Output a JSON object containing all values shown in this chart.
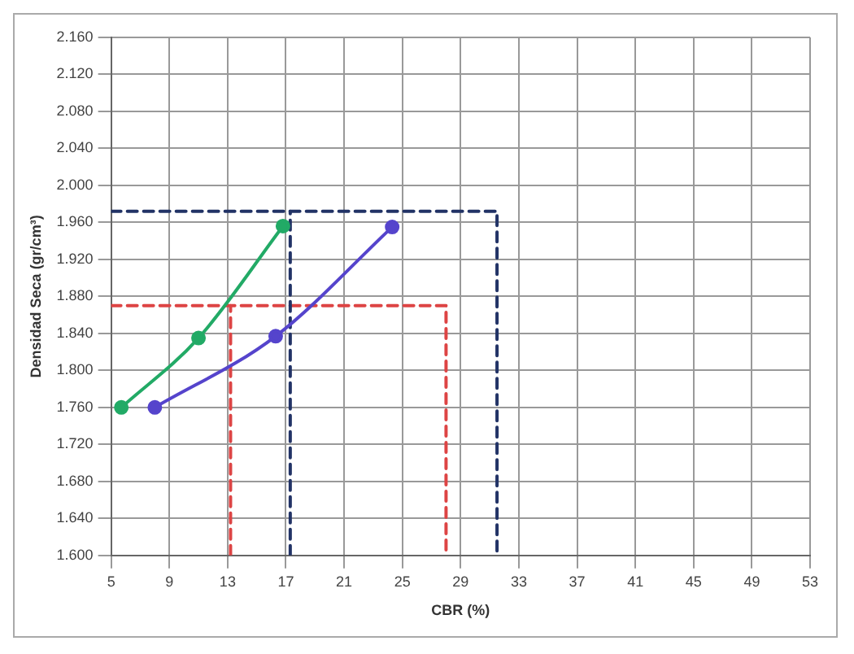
{
  "chart_data": {
    "type": "line",
    "xlabel": "CBR (%)",
    "ylabel": "Densidad Seca (gr/cm³)",
    "xlim": [
      5,
      53
    ],
    "xticks": [
      5,
      9,
      13,
      17,
      21,
      25,
      29,
      33,
      37,
      41,
      45,
      49,
      53
    ],
    "ylim": [
      1.6,
      2.16
    ],
    "yticks": [
      {
        "value": 1.6,
        "label": "1.600"
      },
      {
        "value": 1.64,
        "label": "1.640"
      },
      {
        "value": 1.68,
        "label": "1.680"
      },
      {
        "value": 1.72,
        "label": "1.720"
      },
      {
        "value": 1.76,
        "label": "1.760"
      },
      {
        "value": 1.8,
        "label": "1.800"
      },
      {
        "value": 1.84,
        "label": "1.840"
      },
      {
        "value": 1.88,
        "label": "1.880"
      },
      {
        "value": 1.92,
        "label": "1.920"
      },
      {
        "value": 1.96,
        "label": "1.960"
      },
      {
        "value": 2.0,
        "label": "2.000"
      },
      {
        "value": 2.04,
        "label": "2.040"
      },
      {
        "value": 2.08,
        "label": "2.080"
      },
      {
        "value": 2.12,
        "label": "2.120"
      },
      {
        "value": 2.16,
        "label": "2.160"
      }
    ],
    "grid": true,
    "legend": false,
    "series": [
      {
        "color": "#22aa66",
        "x": [
          5.7,
          11,
          16.8
        ],
        "values": [
          1.76,
          1.835,
          1.956
        ],
        "marker": "circle",
        "line_style": "solid"
      },
      {
        "color": "#5544cc",
        "x": [
          8,
          16.3,
          24.3
        ],
        "values": [
          1.76,
          1.837,
          1.955
        ],
        "marker": "circle",
        "line_style": "solid"
      },
      {
        "color": "#223366",
        "x": [
          5,
          31.5,
          31.5
        ],
        "values": [
          1.972,
          1.972,
          1.6
        ],
        "marker": "none",
        "line_style": "dashed"
      },
      {
        "color": "#223366",
        "x": [
          17.3,
          17.3
        ],
        "values": [
          1.6,
          1.972
        ],
        "marker": "none",
        "line_style": "dashed"
      },
      {
        "color": "#dd4444",
        "x": [
          5,
          28,
          28
        ],
        "values": [
          1.87,
          1.87,
          1.6
        ],
        "marker": "none",
        "line_style": "dashed"
      },
      {
        "color": "#dd4444",
        "x": [
          13.2,
          13.2
        ],
        "values": [
          1.6,
          1.87
        ],
        "marker": "none",
        "line_style": "dashed"
      }
    ]
  }
}
